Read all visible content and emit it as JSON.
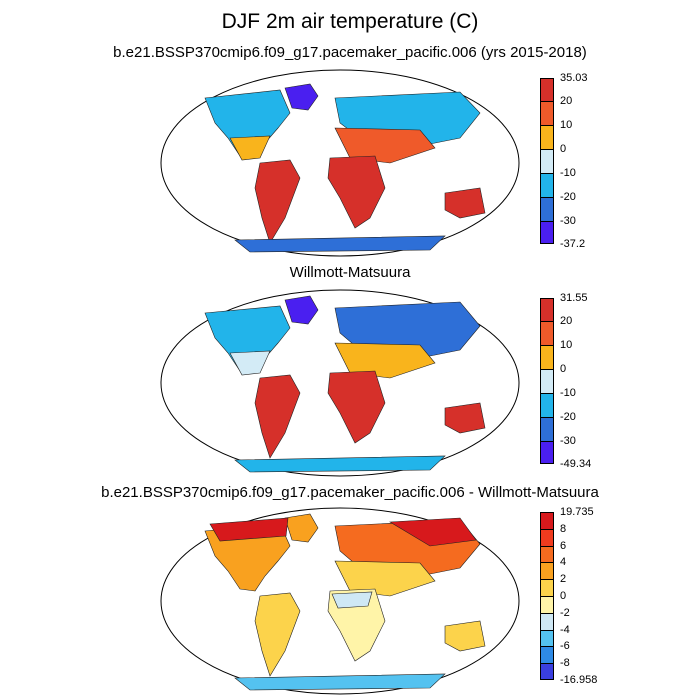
{
  "title": "DJF 2m air temperature (C)",
  "panels": [
    {
      "title": "b.e21.BSSP370cmip6.f09_g17.pacemaker_pacific.006 (yrs 2015-2018)",
      "colorbar": {
        "labels": [
          "35.03",
          "20",
          "10",
          "0",
          "-10",
          "-20",
          "-30",
          "-37.2"
        ],
        "colors": [
          "#d6302a",
          "#ef5a2a",
          "#f9b41c",
          "#d3ebf6",
          "#22b4ea",
          "#2e6fd7",
          "#4a1ff0"
        ]
      }
    },
    {
      "title": "Willmott-Matsuura",
      "colorbar": {
        "labels": [
          "31.55",
          "20",
          "10",
          "0",
          "-10",
          "-20",
          "-30",
          "-49.34"
        ],
        "colors": [
          "#d6302a",
          "#ef5a2a",
          "#f9b41c",
          "#d3ebf6",
          "#22b4ea",
          "#2e6fd7",
          "#4a1ff0"
        ]
      }
    },
    {
      "title": "b.e21.BSSP370cmip6.f09_g17.pacemaker_pacific.006 - Willmott-Matsuura",
      "colorbar": {
        "labels": [
          "19.735",
          "8",
          "6",
          "4",
          "2",
          "0",
          "-2",
          "-4",
          "-6",
          "-8",
          "-16.958"
        ],
        "colors": [
          "#d7191c",
          "#f03b1e",
          "#f56b1f",
          "#f9a11f",
          "#fcd34b",
          "#fff4a8",
          "#cfe8f5",
          "#54c2f0",
          "#2e8ae6",
          "#3a3fe0"
        ]
      }
    }
  ]
}
